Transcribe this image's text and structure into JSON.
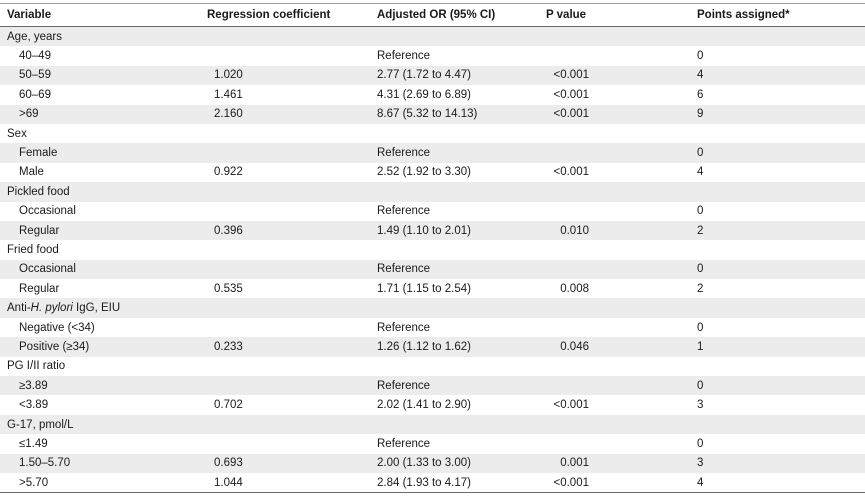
{
  "header": {
    "variable": "Variable",
    "coefficient": "Regression coefficient",
    "or": "Adjusted OR (95% CI)",
    "p": "P value",
    "points": "Points assigned*"
  },
  "rows": [
    {
      "type": "group",
      "label": "Age, years"
    },
    {
      "type": "item",
      "label": "40–49",
      "coef": "",
      "or": "Reference",
      "p": "",
      "points": "0"
    },
    {
      "type": "item",
      "label": "50–59",
      "coef": "1.020",
      "or": "2.77 (1.72 to 4.47)",
      "p": "<0.001",
      "points": "4"
    },
    {
      "type": "item",
      "label": "60–69",
      "coef": "1.461",
      "or": "4.31 (2.69 to 6.89)",
      "p": "<0.001",
      "points": "6"
    },
    {
      "type": "item",
      "label": ">69",
      "coef": "2.160",
      "or": "8.67 (5.32 to 14.13)",
      "p": "<0.001",
      "points": "9"
    },
    {
      "type": "group",
      "label": "Sex"
    },
    {
      "type": "item",
      "label": "Female",
      "coef": "",
      "or": "Reference",
      "p": "",
      "points": "0"
    },
    {
      "type": "item",
      "label": "Male",
      "coef": "0.922",
      "or": "2.52 (1.92 to 3.30)",
      "p": "<0.001",
      "points": "4"
    },
    {
      "type": "group",
      "label": "Pickled food"
    },
    {
      "type": "item",
      "label": "Occasional",
      "coef": "",
      "or": "Reference",
      "p": "",
      "points": "0"
    },
    {
      "type": "item",
      "label": "Regular",
      "coef": "0.396",
      "or": "1.49 (1.10 to 2.01)",
      "p": "0.010",
      "points": "2"
    },
    {
      "type": "group",
      "label": "Fried food"
    },
    {
      "type": "item",
      "label": "Occasional",
      "coef": "",
      "or": "Reference",
      "p": "",
      "points": "0"
    },
    {
      "type": "item",
      "label": "Regular",
      "coef": "0.535",
      "or": "1.71 (1.15 to 2.54)",
      "p": "0.008",
      "points": "2"
    },
    {
      "type": "group",
      "label_pre": "Anti-",
      "label_em": "H. pylori",
      "label_post": " IgG, EIU"
    },
    {
      "type": "item",
      "label": "Negative (<34)",
      "coef": "",
      "or": "Reference",
      "p": "",
      "points": "0"
    },
    {
      "type": "item",
      "label": "Positive (≥34)",
      "coef": "0.233",
      "or": "1.26 (1.12 to 1.62)",
      "p": "0.046",
      "points": "1"
    },
    {
      "type": "group",
      "label": "PG I/II ratio"
    },
    {
      "type": "item",
      "label": "≥3.89",
      "coef": "",
      "or": "Reference",
      "p": "",
      "points": "0"
    },
    {
      "type": "item",
      "label": "<3.89",
      "coef": "0.702",
      "or": "2.02 (1.41 to 2.90)",
      "p": "<0.001",
      "points": "3"
    },
    {
      "type": "group",
      "label": "G-17, pmol/L"
    },
    {
      "type": "item",
      "label": "≤1.49",
      "coef": "",
      "or": "Reference",
      "p": "",
      "points": "0"
    },
    {
      "type": "item",
      "label": "1.50–5.70",
      "coef": "0.693",
      "or": "2.00 (1.33 to 3.00)",
      "p": "0.001",
      "points": "3"
    },
    {
      "type": "item",
      "label": ">5.70",
      "coef": "1.044",
      "or": "2.84 (1.93 to 4.17)",
      "p": "<0.001",
      "points": "4"
    }
  ]
}
